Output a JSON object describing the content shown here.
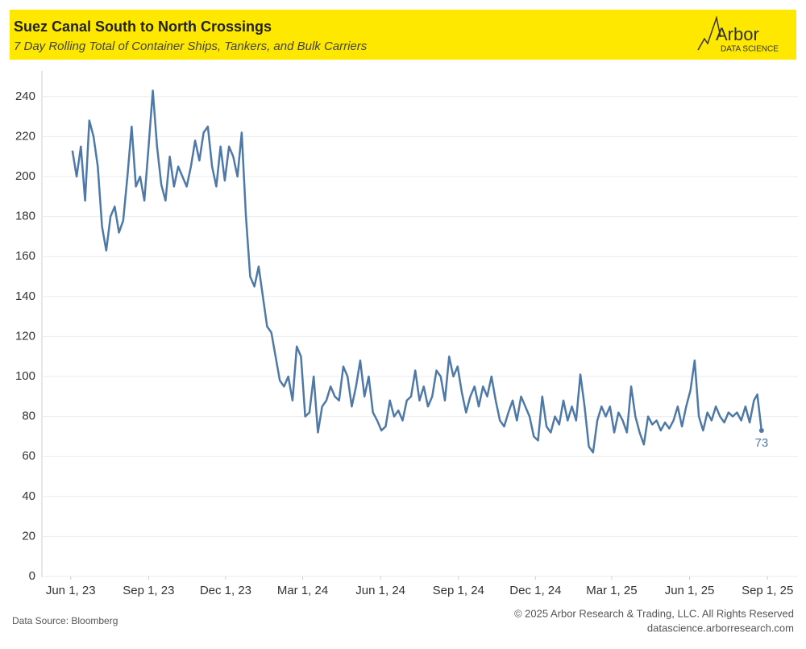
{
  "chart_data": {
    "type": "line",
    "title": "Suez Canal South to North Crossings",
    "subtitle": "7 Day Rolling Total of Container Ships, Tankers, and Bulk Carriers",
    "logo": {
      "name": "Arbor",
      "tagline": "DATA SCIENCE"
    },
    "source": "Data Source: Bloomberg",
    "footer": [
      "© 2025 Arbor Research & Trading, LLC. All Rights Reserved",
      "datascience.arborresearch.com"
    ],
    "xlim": [
      "2023-04-28",
      "2025-10-07"
    ],
    "xticks": [
      {
        "value": "2023-06-01",
        "label": "Jun 1, 23"
      },
      {
        "value": "2023-09-01",
        "label": "Sep 1, 23"
      },
      {
        "value": "2023-12-01",
        "label": "Dec 1, 23"
      },
      {
        "value": "2024-03-01",
        "label": "Mar 1, 24"
      },
      {
        "value": "2024-06-01",
        "label": "Jun 1, 24"
      },
      {
        "value": "2024-09-01",
        "label": "Sep 1, 24"
      },
      {
        "value": "2024-12-01",
        "label": "Dec 1, 24"
      },
      {
        "value": "2025-03-01",
        "label": "Mar 1, 25"
      },
      {
        "value": "2025-06-01",
        "label": "Jun 1, 25"
      },
      {
        "value": "2025-09-01",
        "label": "Sep 1, 25"
      }
    ],
    "ylim": [
      0,
      250
    ],
    "yticks": [
      0,
      20,
      40,
      60,
      80,
      100,
      120,
      140,
      160,
      180,
      200,
      220,
      240
    ],
    "grid": true,
    "x": [
      "2023-06-03",
      "2023-06-08",
      "2023-06-13",
      "2023-06-18",
      "2023-06-23",
      "2023-06-28",
      "2023-07-03",
      "2023-07-08",
      "2023-07-13",
      "2023-07-18",
      "2023-07-23",
      "2023-07-28",
      "2023-08-02",
      "2023-08-07",
      "2023-08-12",
      "2023-08-17",
      "2023-08-22",
      "2023-08-27",
      "2023-09-01",
      "2023-09-06",
      "2023-09-11",
      "2023-09-16",
      "2023-09-21",
      "2023-09-26",
      "2023-10-01",
      "2023-10-06",
      "2023-10-11",
      "2023-10-16",
      "2023-10-21",
      "2023-10-26",
      "2023-10-31",
      "2023-11-05",
      "2023-11-10",
      "2023-11-15",
      "2023-11-20",
      "2023-11-25",
      "2023-11-30",
      "2023-12-05",
      "2023-12-10",
      "2023-12-15",
      "2023-12-20",
      "2023-12-25",
      "2023-12-30",
      "2024-01-04",
      "2024-01-09",
      "2024-01-14",
      "2024-01-19",
      "2024-01-24",
      "2024-01-29",
      "2024-02-03",
      "2024-02-08",
      "2024-02-13",
      "2024-02-18",
      "2024-02-23",
      "2024-02-28",
      "2024-03-04",
      "2024-03-09",
      "2024-03-14",
      "2024-03-19",
      "2024-03-24",
      "2024-03-29",
      "2024-04-03",
      "2024-04-08",
      "2024-04-13",
      "2024-04-18",
      "2024-04-23",
      "2024-04-28",
      "2024-05-03",
      "2024-05-08",
      "2024-05-13",
      "2024-05-18",
      "2024-05-23",
      "2024-05-28",
      "2024-06-02",
      "2024-06-07",
      "2024-06-12",
      "2024-06-17",
      "2024-06-22",
      "2024-06-27",
      "2024-07-02",
      "2024-07-07",
      "2024-07-12",
      "2024-07-17",
      "2024-07-22",
      "2024-07-27",
      "2024-08-01",
      "2024-08-06",
      "2024-08-11",
      "2024-08-16",
      "2024-08-21",
      "2024-08-26",
      "2024-08-31",
      "2024-09-05",
      "2024-09-10",
      "2024-09-15",
      "2024-09-20",
      "2024-09-25",
      "2024-09-30",
      "2024-10-05",
      "2024-10-10",
      "2024-10-15",
      "2024-10-20",
      "2024-10-25",
      "2024-10-30",
      "2024-11-04",
      "2024-11-09",
      "2024-11-14",
      "2024-11-19",
      "2024-11-24",
      "2024-11-29",
      "2024-12-04",
      "2024-12-09",
      "2024-12-14",
      "2024-12-19",
      "2024-12-24",
      "2024-12-29",
      "2025-01-03",
      "2025-01-08",
      "2025-01-13",
      "2025-01-18",
      "2025-01-23",
      "2025-01-28",
      "2025-02-02",
      "2025-02-07",
      "2025-02-12",
      "2025-02-17",
      "2025-02-22",
      "2025-02-27",
      "2025-03-04",
      "2025-03-09",
      "2025-03-14",
      "2025-03-19",
      "2025-03-24",
      "2025-03-29",
      "2025-04-03",
      "2025-04-08",
      "2025-04-13",
      "2025-04-18",
      "2025-04-23",
      "2025-04-28",
      "2025-05-03",
      "2025-05-08",
      "2025-05-13",
      "2025-05-18",
      "2025-05-23",
      "2025-05-28",
      "2025-06-02",
      "2025-06-07",
      "2025-06-12",
      "2025-06-17",
      "2025-06-22",
      "2025-06-27",
      "2025-07-02",
      "2025-07-07",
      "2025-07-12",
      "2025-07-17",
      "2025-07-22",
      "2025-07-27",
      "2025-08-01",
      "2025-08-06",
      "2025-08-11",
      "2025-08-16",
      "2025-08-20",
      "2025-08-25"
    ],
    "series": [
      {
        "name": "Crossings",
        "color": "#4e79a7",
        "values": [
          213,
          200,
          215,
          188,
          228,
          220,
          205,
          175,
          163,
          180,
          185,
          172,
          178,
          200,
          225,
          195,
          200,
          188,
          215,
          243,
          215,
          196,
          188,
          210,
          195,
          205,
          200,
          195,
          205,
          218,
          208,
          222,
          225,
          205,
          195,
          215,
          198,
          215,
          210,
          200,
          222,
          180,
          150,
          145,
          155,
          140,
          125,
          122,
          110,
          98,
          95,
          100,
          88,
          115,
          110,
          80,
          82,
          100,
          72,
          85,
          88,
          95,
          90,
          88,
          105,
          100,
          85,
          95,
          108,
          90,
          100,
          82,
          78,
          73,
          75,
          88,
          80,
          83,
          78,
          88,
          90,
          103,
          88,
          95,
          85,
          90,
          103,
          100,
          88,
          110,
          100,
          105,
          92,
          82,
          90,
          95,
          85,
          95,
          90,
          100,
          88,
          78,
          75,
          82,
          88,
          78,
          90,
          85,
          80,
          70,
          68,
          90,
          75,
          72,
          80,
          76,
          88,
          78,
          85,
          78,
          101,
          85,
          65,
          62,
          78,
          85,
          80,
          85,
          72,
          82,
          78,
          72,
          95,
          80,
          72,
          66,
          80,
          76,
          78,
          73,
          77,
          74,
          78,
          85,
          75,
          85,
          93,
          108,
          80,
          73,
          82,
          78,
          85,
          80,
          77,
          82,
          80,
          82,
          78,
          85,
          77,
          88,
          91,
          73
        ]
      }
    ]
  }
}
